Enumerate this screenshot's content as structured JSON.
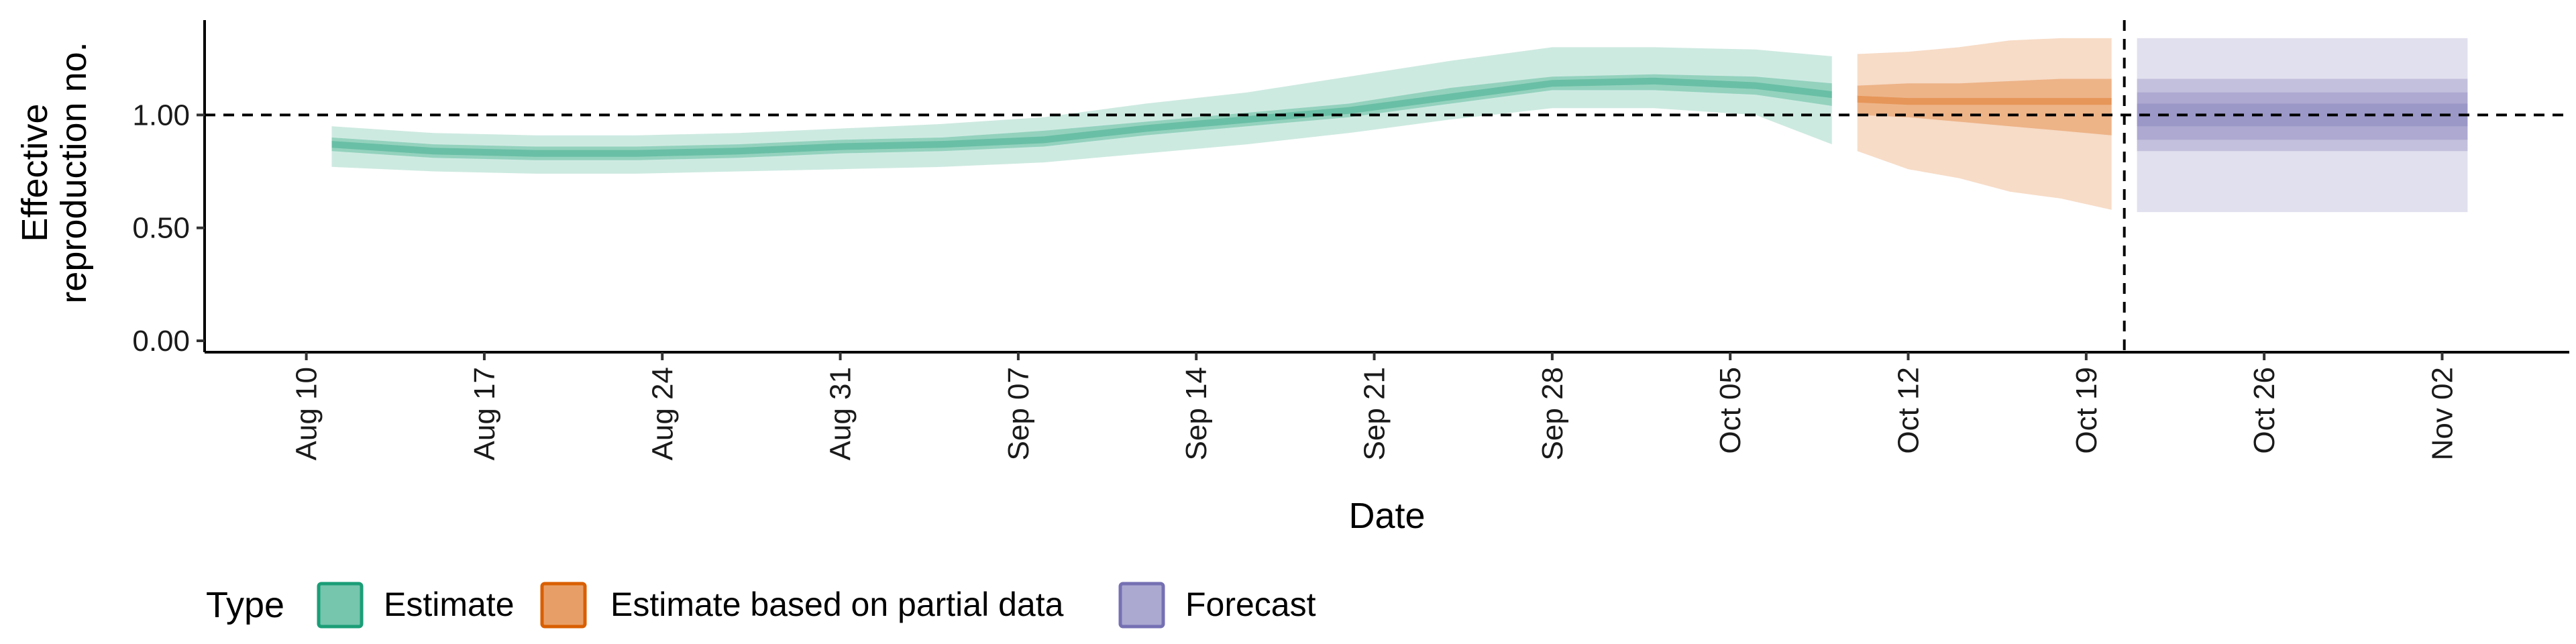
{
  "chart_data": {
    "type": "area",
    "xlabel": "Date",
    "ylabel_lines": [
      "Effective",
      "reproduction no."
    ],
    "x_ticks": [
      "Aug 10",
      "Aug 17",
      "Aug 24",
      "Aug 31",
      "Sep 07",
      "Sep 14",
      "Sep 21",
      "Sep 28",
      "Oct 05",
      "Oct 12",
      "Oct 19",
      "Oct 26",
      "Nov 02"
    ],
    "y_ticks": [
      "0.00",
      "0.50",
      "1.00"
    ],
    "ylim": [
      0,
      1.42
    ],
    "xlim": [
      "2020-08-06",
      "2020-11-07"
    ],
    "reference_line_y": 1.0,
    "forecast_date": "2020-10-20",
    "legend": {
      "title": "Type",
      "items": [
        "Estimate",
        "Estimate based on partial data",
        "Forecast"
      ]
    },
    "colors": {
      "Estimate": "#1b9e77",
      "Estimate based on partial data": "#d95f02",
      "Forecast": "#7570b3"
    },
    "series": [
      {
        "name": "Estimate",
        "x": [
          "2020-08-11",
          "2020-08-15",
          "2020-08-19",
          "2020-08-23",
          "2020-08-27",
          "2020-08-31",
          "2020-09-04",
          "2020-09-08",
          "2020-09-12",
          "2020-09-16",
          "2020-09-20",
          "2020-09-24",
          "2020-09-28",
          "2020-10-02",
          "2020-10-06",
          "2020-10-09"
        ],
        "median": [
          0.87,
          0.84,
          0.83,
          0.83,
          0.84,
          0.86,
          0.87,
          0.89,
          0.94,
          0.98,
          1.02,
          1.08,
          1.14,
          1.15,
          1.13,
          1.09
        ],
        "lower_50": [
          0.84,
          0.81,
          0.8,
          0.8,
          0.81,
          0.83,
          0.84,
          0.86,
          0.91,
          0.95,
          0.99,
          1.05,
          1.11,
          1.11,
          1.09,
          1.04
        ],
        "upper_50": [
          0.9,
          0.87,
          0.86,
          0.86,
          0.87,
          0.89,
          0.9,
          0.93,
          0.97,
          1.01,
          1.05,
          1.12,
          1.17,
          1.18,
          1.17,
          1.14
        ],
        "lower_90": [
          0.77,
          0.75,
          0.74,
          0.74,
          0.75,
          0.76,
          0.77,
          0.79,
          0.83,
          0.87,
          0.92,
          0.98,
          1.03,
          1.03,
          1.0,
          0.87
        ],
        "upper_90": [
          0.95,
          0.92,
          0.91,
          0.91,
          0.92,
          0.94,
          0.96,
          0.99,
          1.05,
          1.1,
          1.17,
          1.24,
          1.3,
          1.3,
          1.29,
          1.26
        ]
      },
      {
        "name": "Estimate based on partial data",
        "x": [
          "2020-10-10",
          "2020-10-12",
          "2020-10-14",
          "2020-10-16",
          "2020-10-18",
          "2020-10-20"
        ],
        "median": [
          1.07,
          1.06,
          1.06,
          1.06,
          1.06,
          1.06
        ],
        "lower_50": [
          1.0,
          0.99,
          0.97,
          0.95,
          0.93,
          0.91
        ],
        "upper_50": [
          1.13,
          1.14,
          1.14,
          1.15,
          1.16,
          1.16
        ],
        "lower_90": [
          0.84,
          0.76,
          0.72,
          0.66,
          0.63,
          0.58
        ],
        "upper_90": [
          1.27,
          1.28,
          1.3,
          1.33,
          1.34,
          1.34
        ]
      },
      {
        "name": "Forecast",
        "x": [
          "2020-10-21",
          "2020-11-03"
        ],
        "lower_30": [
          0.95,
          0.95
        ],
        "upper_30": [
          1.05,
          1.05
        ],
        "lower_50": [
          0.89,
          0.89
        ],
        "upper_50": [
          1.1,
          1.1
        ],
        "lower_60": [
          0.84,
          0.84
        ],
        "upper_60": [
          1.16,
          1.16
        ],
        "lower_90": [
          0.57,
          0.57
        ],
        "upper_90": [
          1.34,
          1.34
        ]
      }
    ]
  }
}
